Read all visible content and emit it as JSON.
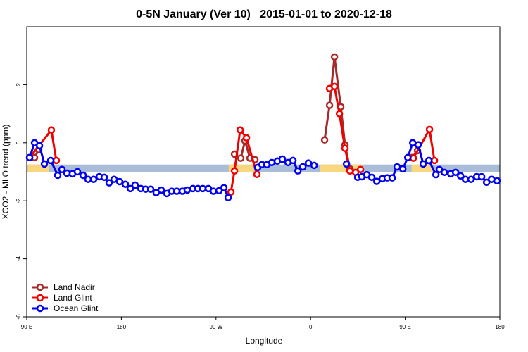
{
  "chart_data": {
    "type": "line",
    "title": "0-5N January (Ver 10)   2015-01-01 to 2020-12-18",
    "x_label": "Longitude",
    "y_label": "XCO2 - MLO trend (ppm)",
    "xlim": [
      90,
      540
    ],
    "ylim": [
      -6,
      4
    ],
    "xticks": [
      {
        "value": 90,
        "label": "90 E"
      },
      {
        "value": 180,
        "label": "180"
      },
      {
        "value": 270,
        "label": "90 W"
      },
      {
        "value": 360,
        "label": "0"
      },
      {
        "value": 450,
        "label": "90 E"
      },
      {
        "value": 540,
        "label": "180"
      }
    ],
    "yticks": [
      -6,
      -4,
      -2,
      0,
      2
    ],
    "legend": "bottom-left",
    "surface_band": {
      "ylim": [
        -1.0,
        -0.75
      ],
      "ocean_color": "#a9bdd9",
      "land_color": "#f9d77e",
      "land": [
        [
          91,
          111
        ],
        [
          282,
          306
        ],
        [
          369,
          409
        ],
        [
          456,
          476
        ]
      ]
    },
    "series": [
      {
        "name": "Land Nadir",
        "color": "#a52a2a",
        "x": [
          97.4,
          101.4,
          null,
          287.6,
          293.6,
          297.6,
          302.3,
          307.0,
          null,
          373.3,
          378.0,
          382.7,
          388.7,
          392.7,
          397.4,
          null,
          456.4,
          461.7
        ],
        "values": [
          -0.51,
          -0.24,
          null,
          -0.39,
          -0.53,
          0.07,
          -0.53,
          -0.58,
          null,
          0.1,
          1.29,
          2.96,
          1.24,
          -0.07,
          -0.9,
          null,
          -0.51,
          -0.27
        ]
      },
      {
        "name": "Land Glint",
        "color": "#ee0000",
        "x": [
          92.7,
          113.4,
          118.1,
          null,
          284.2,
          287.6,
          293.0,
          299.0,
          309.0,
          null,
          378.0,
          382.7,
          387.4,
          392.7,
          397.4,
          402.8,
          407.5,
          null,
          457.7,
          473.1,
          477.8
        ],
        "values": [
          -0.51,
          0.44,
          -0.61,
          null,
          -1.7,
          -0.97,
          0.44,
          0.17,
          -1.09,
          null,
          1.87,
          1.94,
          1.0,
          -0.19,
          -0.97,
          -1.02,
          -0.92,
          null,
          -0.53,
          0.46,
          -0.61
        ]
      },
      {
        "name": "Ocean Glint",
        "color": "#0000ee",
        "x": [
          92.7,
          97.4,
          102.1,
          106.8,
          112.8,
          119.5,
          123.5,
          128.2,
          133.5,
          138.2,
          143.6,
          148.3,
          153.6,
          159.0,
          163.7,
          168.4,
          173.1,
          178.4,
          183.8,
          188.5,
          193.1,
          198.5,
          203.2,
          207.9,
          213.2,
          217.9,
          223.3,
          228.0,
          232.7,
          238.0,
          242.7,
          248.1,
          252.8,
          257.4,
          262.8,
          267.5,
          272.9,
          277.5,
          281.6,
          null,
          309.7,
          313.7,
          318.4,
          323.1,
          328.4,
          333.1,
          338.5,
          343.2,
          347.9,
          352.6,
          357.9,
          363.3,
          null,
          394.1,
          null,
          404.8,
          408.8,
          413.5,
          418.2,
          422.9,
          428.2,
          432.9,
          437.6,
          442.3,
          447.7,
          452.4,
          457.1,
          462.4,
          467.1,
          472.5,
          479.2,
          482.5,
          487.2,
          493.3,
          497.9,
          502.6,
          507.3,
          512.6,
          518.0,
          522.7,
          527.4,
          532.1,
          537.4
        ],
        "values": [
          -0.51,
          0.0,
          -0.1,
          -0.73,
          -0.61,
          -1.12,
          -0.92,
          -1.05,
          -1.07,
          -1.0,
          -1.12,
          -1.26,
          -1.26,
          -1.17,
          -1.19,
          -1.38,
          -1.26,
          -1.34,
          -1.43,
          -1.58,
          -1.46,
          -1.58,
          -1.6,
          -1.6,
          -1.72,
          -1.63,
          -1.75,
          -1.67,
          -1.67,
          -1.67,
          -1.63,
          -1.58,
          -1.58,
          -1.58,
          -1.58,
          -1.67,
          -1.65,
          -1.55,
          -1.89,
          null,
          -0.85,
          -0.75,
          -0.75,
          -0.68,
          -0.63,
          -0.56,
          -0.68,
          -0.61,
          -0.97,
          -0.83,
          -0.7,
          -0.78,
          null,
          -0.73,
          null,
          -1.19,
          -1.17,
          -1.1,
          -1.19,
          -1.33,
          -1.24,
          -1.21,
          -1.21,
          -0.83,
          -0.9,
          -0.51,
          0.0,
          -0.07,
          -0.73,
          -0.61,
          -1.1,
          -0.92,
          -1.02,
          -1.07,
          -1.02,
          -1.14,
          -1.26,
          -1.26,
          -1.17,
          -1.17,
          -1.36,
          -1.26,
          -1.31
        ]
      }
    ]
  }
}
